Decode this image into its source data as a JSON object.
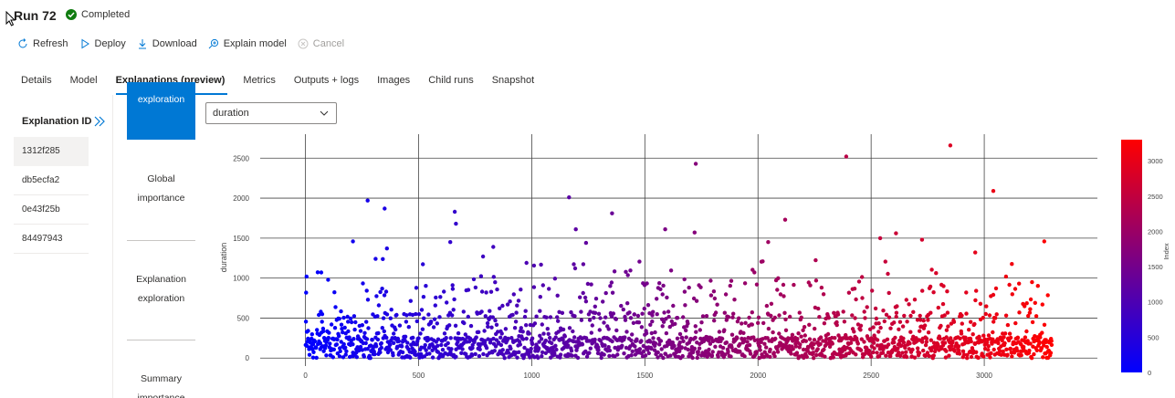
{
  "run": {
    "title": "Run 72",
    "status": "Completed",
    "status_color": "#107c10"
  },
  "toolbar": {
    "refresh": "Refresh",
    "deploy": "Deploy",
    "download": "Download",
    "explain": "Explain model",
    "cancel": "Cancel"
  },
  "tabs": [
    "Details",
    "Model",
    "Explanations (preview)",
    "Metrics",
    "Outputs + logs",
    "Images",
    "Child runs",
    "Snapshot"
  ],
  "active_tab": "Explanations (preview)",
  "explanations": {
    "header": "Explanation ID",
    "ids": [
      "1312f285",
      "db5ecfa2",
      "0e43f25b",
      "84497943"
    ],
    "selected": "1312f285"
  },
  "side_nav": {
    "top_partial": "exploration",
    "global_1": "Global",
    "global_2": "importance",
    "expl_1": "Explanation",
    "expl_2": "exploration",
    "summary_1": "Summary",
    "summary_2": "importance"
  },
  "feature_select": {
    "value": "duration"
  },
  "colors": {
    "accent": "#0078d4",
    "scale_low": "#0000ff",
    "scale_high": "#ff0000"
  },
  "chart_data": {
    "type": "scatter",
    "ylabel": "duration",
    "xlabel": "",
    "xlim": [
      -200,
      3500
    ],
    "ylim": [
      -100,
      2800
    ],
    "x_ticks": [
      0,
      500,
      1000,
      1500,
      2000,
      2500,
      3000
    ],
    "y_ticks": [
      0,
      500,
      1000,
      1500,
      2000,
      2500
    ],
    "n_points": 3300,
    "colorbar": {
      "label": "Index",
      "ticks": [
        0,
        500,
        1000,
        1500,
        2000,
        2500,
        3000
      ],
      "range": [
        0,
        3300
      ]
    },
    "outliers": [
      {
        "x": 5,
        "y": 1020
      },
      {
        "x": 70,
        "y": 1070
      },
      {
        "x": 210,
        "y": 1460
      },
      {
        "x": 275,
        "y": 1970
      },
      {
        "x": 350,
        "y": 1870
      },
      {
        "x": 360,
        "y": 1370
      },
      {
        "x": 310,
        "y": 1240
      },
      {
        "x": 640,
        "y": 1450
      },
      {
        "x": 660,
        "y": 1830
      },
      {
        "x": 665,
        "y": 1680
      },
      {
        "x": 785,
        "y": 1270
      },
      {
        "x": 830,
        "y": 1390
      },
      {
        "x": 1165,
        "y": 2010
      },
      {
        "x": 1195,
        "y": 1610
      },
      {
        "x": 1240,
        "y": 1440
      },
      {
        "x": 1355,
        "y": 1810
      },
      {
        "x": 1725,
        "y": 2430
      },
      {
        "x": 1720,
        "y": 1570
      },
      {
        "x": 1590,
        "y": 1610
      },
      {
        "x": 2120,
        "y": 1730
      },
      {
        "x": 2045,
        "y": 1450
      },
      {
        "x": 2390,
        "y": 2520
      },
      {
        "x": 2540,
        "y": 1500
      },
      {
        "x": 2610,
        "y": 1560
      },
      {
        "x": 2725,
        "y": 1480
      },
      {
        "x": 2850,
        "y": 2660
      },
      {
        "x": 3040,
        "y": 2090
      },
      {
        "x": 3265,
        "y": 1460
      },
      {
        "x": 2960,
        "y": 1320
      }
    ]
  }
}
